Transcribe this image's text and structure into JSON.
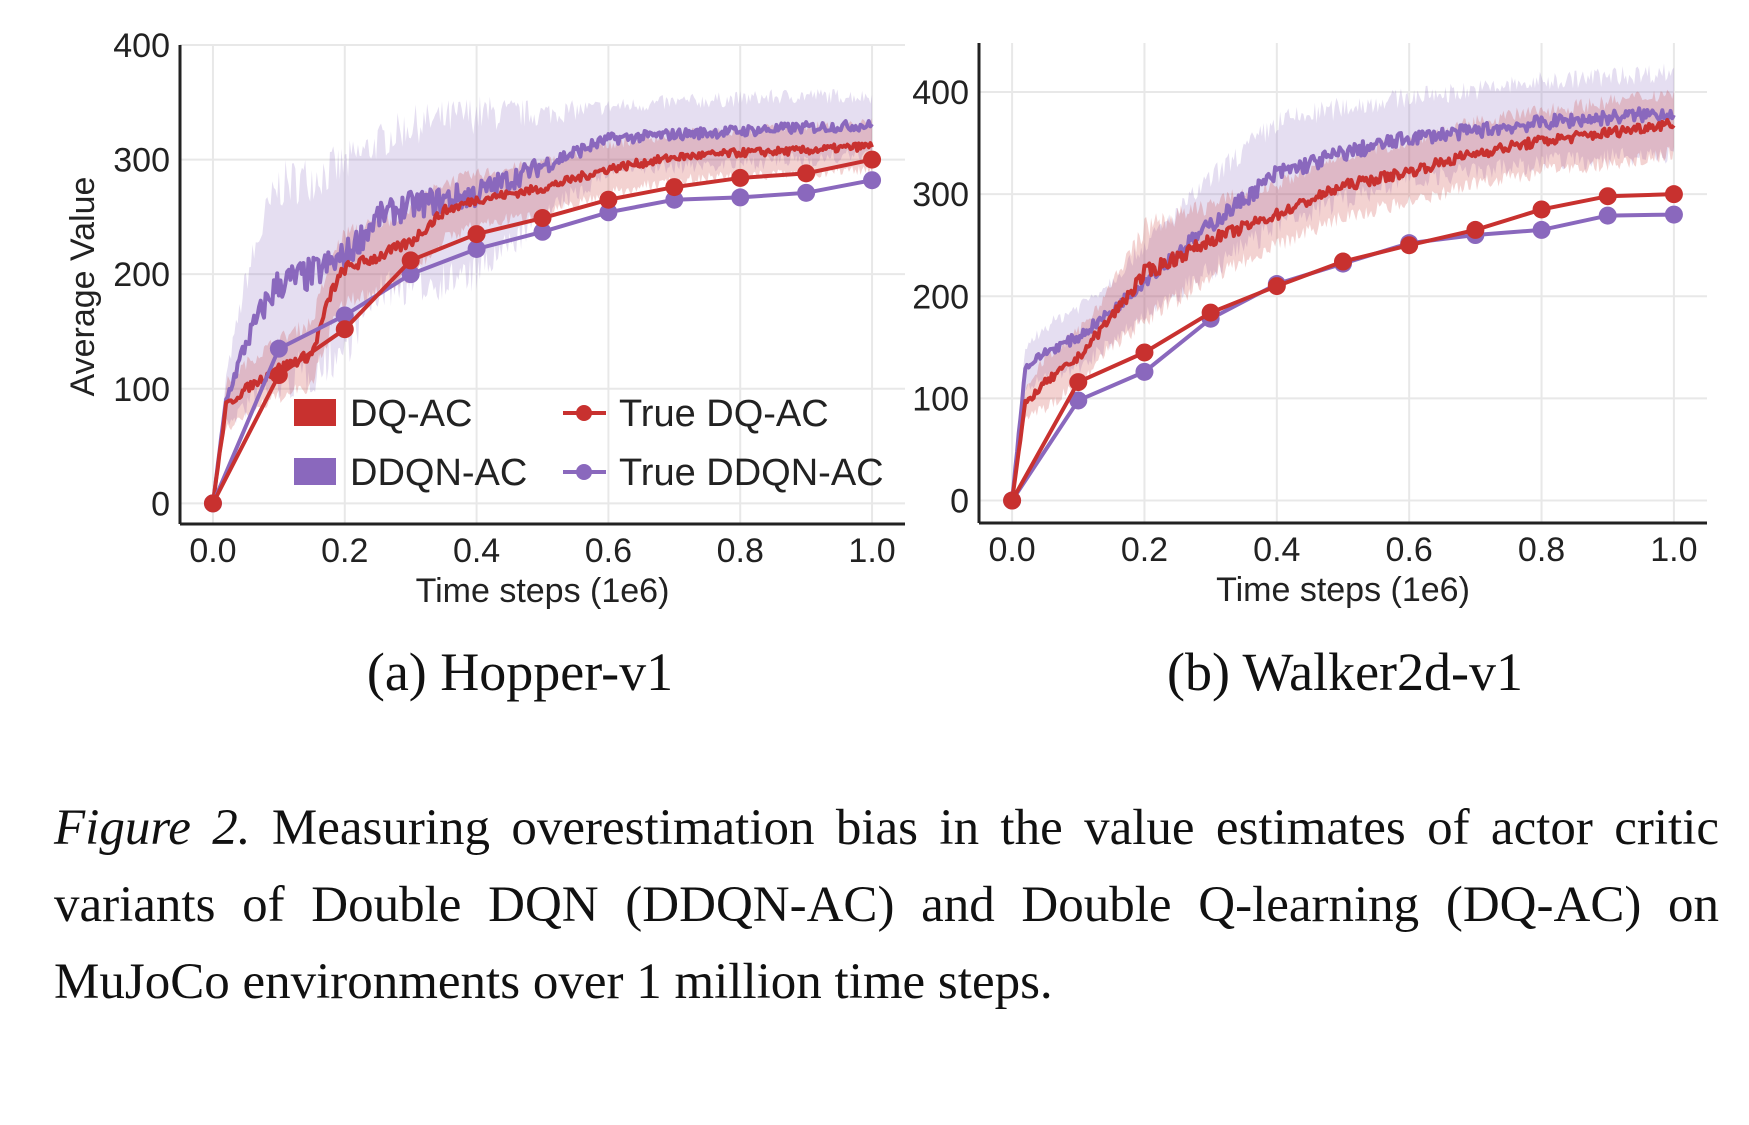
{
  "colors": {
    "dq": "#c8312f",
    "ddqn": "#8a68bd",
    "grid": "#e8e8e8",
    "axis": "#222222"
  },
  "legend": {
    "placement": "lower-right of panel (a)",
    "items": [
      {
        "label": "DQ-AC",
        "type": "band",
        "series": "dq"
      },
      {
        "label": "True DQ-AC",
        "type": "marker-line",
        "series": "dq"
      },
      {
        "label": "DDQN-AC",
        "type": "band",
        "series": "ddqn"
      },
      {
        "label": "True DDQN-AC",
        "type": "marker-line",
        "series": "ddqn"
      }
    ]
  },
  "chart_data": [
    {
      "type": "line",
      "subtitle": "(a) Hopper-v1",
      "xlabel": "Time steps (1e6)",
      "ylabel": "Average Value",
      "xlim": [
        -0.05,
        1.05
      ],
      "ylim": [
        -18,
        400
      ],
      "xticks": [
        "0.0",
        "0.2",
        "0.4",
        "0.6",
        "0.8",
        "1.0"
      ],
      "yticks": [
        "0",
        "100",
        "200",
        "300",
        "400"
      ],
      "grid": true,
      "series": [
        {
          "name": "DQ-AC",
          "color": "dq",
          "x": [
            0,
            0.02,
            0.05,
            0.1,
            0.15,
            0.18,
            0.2,
            0.25,
            0.3,
            0.35,
            0.4,
            0.5,
            0.6,
            0.7,
            0.8,
            0.9,
            1.0
          ],
          "y": [
            0,
            85,
            100,
            118,
            130,
            185,
            205,
            215,
            228,
            255,
            265,
            275,
            292,
            302,
            306,
            308,
            312
          ],
          "band": [
            0,
            20,
            22,
            25,
            28,
            30,
            30,
            30,
            28,
            25,
            22,
            22,
            22,
            20,
            20,
            20,
            20
          ]
        },
        {
          "name": "DDQN-AC",
          "color": "ddqn",
          "x": [
            0,
            0.02,
            0.05,
            0.08,
            0.1,
            0.15,
            0.2,
            0.25,
            0.3,
            0.35,
            0.4,
            0.5,
            0.6,
            0.7,
            0.8,
            0.9,
            1.0
          ],
          "y": [
            0,
            90,
            140,
            175,
            192,
            200,
            215,
            250,
            260,
            265,
            270,
            295,
            318,
            322,
            325,
            328,
            330
          ],
          "band": [
            0,
            20,
            55,
            75,
            85,
            85,
            80,
            65,
            70,
            70,
            70,
            45,
            28,
            28,
            28,
            28,
            25
          ]
        },
        {
          "name": "True DQ-AC",
          "color": "dq",
          "markers": true,
          "x": [
            0,
            0.1,
            0.2,
            0.3,
            0.4,
            0.5,
            0.6,
            0.7,
            0.8,
            0.9,
            1.0
          ],
          "y": [
            0,
            112,
            152,
            212,
            235,
            249,
            265,
            276,
            284,
            288,
            300
          ]
        },
        {
          "name": "True DDQN-AC",
          "color": "ddqn",
          "markers": true,
          "x": [
            0,
            0.1,
            0.2,
            0.3,
            0.4,
            0.5,
            0.6,
            0.7,
            0.8,
            0.9,
            1.0
          ],
          "y": [
            0,
            135,
            164,
            200,
            222,
            237,
            254,
            265,
            267,
            271,
            282
          ]
        }
      ]
    },
    {
      "type": "line",
      "subtitle": "(b) Walker2d-v1",
      "xlabel": "Time steps (1e6)",
      "ylabel": "",
      "xlim": [
        -0.05,
        1.05
      ],
      "ylim": [
        -22,
        448
      ],
      "xticks": [
        "0.0",
        "0.2",
        "0.4",
        "0.6",
        "0.8",
        "1.0"
      ],
      "yticks": [
        "0",
        "100",
        "200",
        "300",
        "400"
      ],
      "grid": true,
      "series": [
        {
          "name": "DQ-AC",
          "color": "dq",
          "x": [
            0,
            0.02,
            0.05,
            0.1,
            0.15,
            0.2,
            0.3,
            0.4,
            0.5,
            0.6,
            0.7,
            0.8,
            0.9,
            1.0
          ],
          "y": [
            0,
            95,
            115,
            140,
            180,
            222,
            255,
            280,
            308,
            322,
            340,
            352,
            360,
            370
          ],
          "band": [
            0,
            15,
            25,
            25,
            30,
            45,
            35,
            30,
            30,
            30,
            30,
            30,
            30,
            30
          ]
        },
        {
          "name": "DDQN-AC",
          "color": "ddqn",
          "x": [
            0,
            0.02,
            0.05,
            0.1,
            0.15,
            0.2,
            0.3,
            0.4,
            0.5,
            0.6,
            0.7,
            0.8,
            0.9,
            1.0
          ],
          "y": [
            0,
            130,
            145,
            160,
            185,
            215,
            270,
            320,
            340,
            355,
            362,
            370,
            375,
            380
          ],
          "band": [
            0,
            20,
            25,
            30,
            30,
            35,
            45,
            50,
            45,
            40,
            40,
            40,
            40,
            40
          ]
        },
        {
          "name": "True DQ-AC",
          "color": "dq",
          "markers": true,
          "x": [
            0,
            0.1,
            0.2,
            0.3,
            0.4,
            0.5,
            0.6,
            0.7,
            0.8,
            0.9,
            1.0
          ],
          "y": [
            0,
            116,
            145,
            184,
            210,
            234,
            250,
            265,
            285,
            298,
            300
          ]
        },
        {
          "name": "True DDQN-AC",
          "color": "ddqn",
          "markers": true,
          "x": [
            0,
            0.1,
            0.2,
            0.3,
            0.4,
            0.5,
            0.6,
            0.7,
            0.8,
            0.9,
            1.0
          ],
          "y": [
            0,
            98,
            126,
            178,
            212,
            232,
            252,
            260,
            265,
            279,
            280
          ]
        }
      ]
    }
  ],
  "caption": {
    "label": "Figure 2.",
    "text": " Measuring overestimation bias in the value estimates of actor critic variants of Double DQN (DDQN-AC) and Double Q-learning (DQ-AC) on MuJoCo environments over 1 million time steps."
  }
}
